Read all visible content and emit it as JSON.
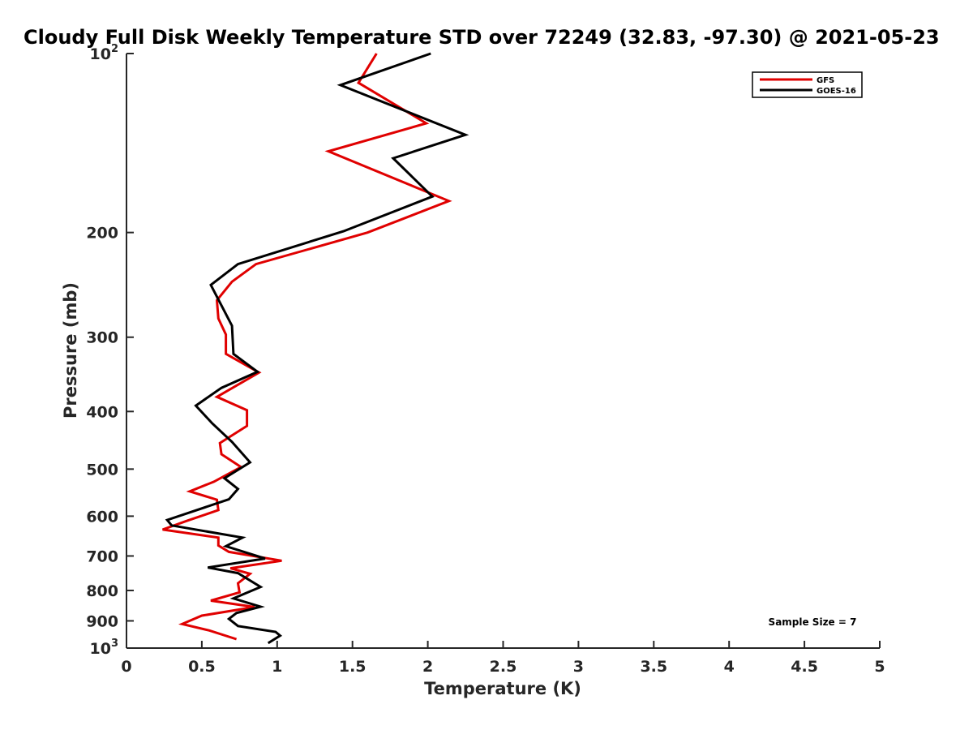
{
  "chart_data": {
    "type": "line",
    "title": "Cloudy Full Disk Weekly Temperature STD over 72249 (32.83, -97.30) @ 2021-05-23",
    "xlabel": "Temperature (K)",
    "ylabel": "Pressure (mb)",
    "xlim": [
      0,
      5
    ],
    "ylim": [
      100,
      1000
    ],
    "yscale": "log",
    "y_reversed": true,
    "x_ticks": [
      0,
      0.5,
      1,
      1.5,
      2,
      2.5,
      3,
      3.5,
      4,
      4.5,
      5
    ],
    "x_tick_labels": [
      "0",
      "0.5",
      "1",
      "1.5",
      "2",
      "2.5",
      "3",
      "3.5",
      "4",
      "4.5",
      "5"
    ],
    "y_ticks": [
      100,
      200,
      300,
      400,
      500,
      600,
      700,
      800,
      900,
      1000
    ],
    "y_tick_labels": [
      {
        "base": "10",
        "sup": "2"
      },
      {
        "base": "200",
        "sup": ""
      },
      {
        "base": "300",
        "sup": ""
      },
      {
        "base": "400",
        "sup": ""
      },
      {
        "base": "500",
        "sup": ""
      },
      {
        "base": "600",
        "sup": ""
      },
      {
        "base": "700",
        "sup": ""
      },
      {
        "base": "800",
        "sup": ""
      },
      {
        "base": "900",
        "sup": ""
      },
      {
        "base": "10",
        "sup": "3"
      }
    ],
    "grid": false,
    "legend_position": "top-right",
    "annotation": "Sample Size = 7",
    "series": [
      {
        "name": "GFS",
        "color": "#e00000",
        "points": [
          [
            1.66,
            100
          ],
          [
            1.54,
            112
          ],
          [
            1.99,
            131
          ],
          [
            1.34,
            146
          ],
          [
            2.14,
            177
          ],
          [
            1.6,
            200
          ],
          [
            0.86,
            226
          ],
          [
            0.7,
            242
          ],
          [
            0.6,
            260
          ],
          [
            0.61,
            279
          ],
          [
            0.66,
            297
          ],
          [
            0.66,
            320
          ],
          [
            0.88,
            344
          ],
          [
            0.6,
            378
          ],
          [
            0.8,
            398
          ],
          [
            0.8,
            423
          ],
          [
            0.62,
            452
          ],
          [
            0.63,
            472
          ],
          [
            0.76,
            496
          ],
          [
            0.58,
            525
          ],
          [
            0.42,
            545
          ],
          [
            0.6,
            563
          ],
          [
            0.61,
            586
          ],
          [
            0.4,
            611
          ],
          [
            0.24,
            632
          ],
          [
            0.61,
            652
          ],
          [
            0.61,
            672
          ],
          [
            0.68,
            689
          ],
          [
            1.03,
            713
          ],
          [
            0.69,
            734
          ],
          [
            0.82,
            750
          ],
          [
            0.74,
            778
          ],
          [
            0.75,
            806
          ],
          [
            0.56,
            832
          ],
          [
            0.85,
            853
          ],
          [
            0.5,
            882
          ],
          [
            0.37,
            911
          ],
          [
            0.55,
            934
          ],
          [
            0.73,
            966
          ]
        ]
      },
      {
        "name": "GOES-16",
        "color": "#000000",
        "points": [
          [
            2.02,
            100
          ],
          [
            1.42,
            113
          ],
          [
            2.25,
            137
          ],
          [
            1.77,
            150
          ],
          [
            2.03,
            174
          ],
          [
            1.44,
            199
          ],
          [
            0.74,
            226
          ],
          [
            0.56,
            245
          ],
          [
            0.7,
            287
          ],
          [
            0.71,
            320
          ],
          [
            0.87,
            343
          ],
          [
            0.63,
            365
          ],
          [
            0.46,
            391
          ],
          [
            0.57,
            419
          ],
          [
            0.7,
            450
          ],
          [
            0.82,
            487
          ],
          [
            0.65,
            518
          ],
          [
            0.74,
            540
          ],
          [
            0.68,
            562
          ],
          [
            0.27,
            609
          ],
          [
            0.3,
            622
          ],
          [
            0.77,
            652
          ],
          [
            0.66,
            674
          ],
          [
            0.92,
            707
          ],
          [
            0.54,
            732
          ],
          [
            0.74,
            748
          ],
          [
            0.89,
            789
          ],
          [
            0.71,
            825
          ],
          [
            0.89,
            852
          ],
          [
            0.73,
            873
          ],
          [
            0.68,
            893
          ],
          [
            0.74,
            918
          ],
          [
            0.99,
            939
          ],
          [
            1.02,
            953
          ],
          [
            0.94,
            981
          ]
        ]
      }
    ]
  }
}
